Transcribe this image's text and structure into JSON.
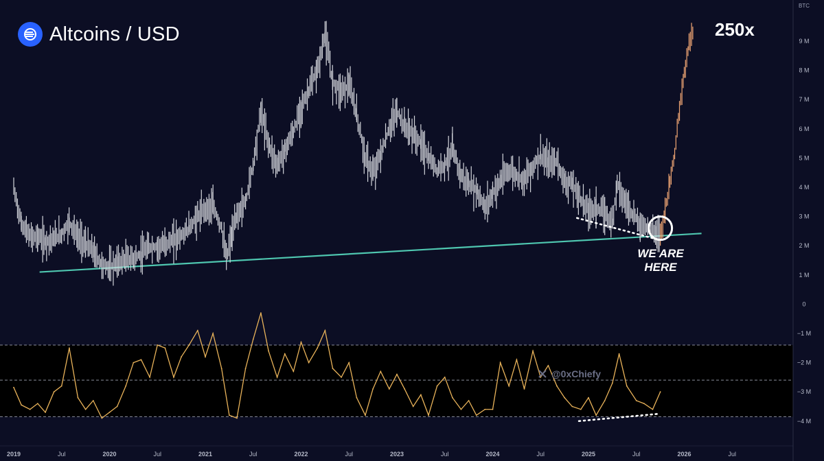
{
  "header": {
    "title": "Altcoins / USD",
    "multiplier": "250x",
    "annotation_line1": "WE ARE",
    "annotation_line2": "HERE",
    "watermark": "@0xChiefy",
    "axis_unit_badge": "BTC"
  },
  "colors": {
    "background": "#0c0e24",
    "price_candles": "#d4d6dc",
    "projection_candles": "#f0a674",
    "trendline": "#4fc7b0",
    "oscillator": "#e9b35a",
    "oscillator_band": "#000000",
    "logo": "#2962ff"
  },
  "icons": {
    "logo": "exchange-logo-icon",
    "watermark": "x-logo-icon"
  },
  "chart_data": {
    "type": "line",
    "title": "Altcoins / USD",
    "x_tick_labels": [
      "2019",
      "Jul",
      "2020",
      "Jul",
      "2021",
      "Jul",
      "2022",
      "Jul",
      "2023",
      "Jul",
      "2024",
      "Jul",
      "2025",
      "Jul",
      "2026",
      "Jul"
    ],
    "y_tick_labels": [
      "9 M",
      "8 M",
      "7 M",
      "6 M",
      "5 M",
      "4 M",
      "3 M",
      "2 M",
      "1 M",
      "0",
      "−1 M",
      "−2 M",
      "−3 M",
      "−4 M"
    ],
    "y_unit": "BTC",
    "xlim": [
      2019.0,
      2026.6
    ],
    "ylim": [
      -4.4,
      10.0
    ],
    "series": [
      {
        "name": "",
        "values": [
          {
            "x": 2019.0,
            "y": 3.95
          },
          {
            "x": 2019.08,
            "y": 2.75
          },
          {
            "x": 2019.17,
            "y": 2.3
          },
          {
            "x": 2019.25,
            "y": 2.3
          },
          {
            "x": 2019.33,
            "y": 2.15
          },
          {
            "x": 2019.42,
            "y": 2.25
          },
          {
            "x": 2019.5,
            "y": 2.4
          },
          {
            "x": 2019.58,
            "y": 2.8
          },
          {
            "x": 2019.67,
            "y": 2.3
          },
          {
            "x": 2019.75,
            "y": 2.05
          },
          {
            "x": 2019.83,
            "y": 1.8
          },
          {
            "x": 2019.92,
            "y": 1.35
          },
          {
            "x": 2020.0,
            "y": 1.25
          },
          {
            "x": 2020.08,
            "y": 1.4
          },
          {
            "x": 2020.17,
            "y": 1.55
          },
          {
            "x": 2020.25,
            "y": 1.55
          },
          {
            "x": 2020.33,
            "y": 1.7
          },
          {
            "x": 2020.42,
            "y": 1.95
          },
          {
            "x": 2020.5,
            "y": 1.95
          },
          {
            "x": 2020.58,
            "y": 2.05
          },
          {
            "x": 2020.67,
            "y": 2.2
          },
          {
            "x": 2020.75,
            "y": 2.35
          },
          {
            "x": 2020.83,
            "y": 2.6
          },
          {
            "x": 2020.92,
            "y": 3.0
          },
          {
            "x": 2021.0,
            "y": 3.25
          },
          {
            "x": 2021.08,
            "y": 3.35
          },
          {
            "x": 2021.17,
            "y": 2.6
          },
          {
            "x": 2021.22,
            "y": 1.55
          },
          {
            "x": 2021.28,
            "y": 2.4
          },
          {
            "x": 2021.33,
            "y": 3.05
          },
          {
            "x": 2021.42,
            "y": 3.5
          },
          {
            "x": 2021.5,
            "y": 4.8
          },
          {
            "x": 2021.58,
            "y": 6.6
          },
          {
            "x": 2021.67,
            "y": 5.4
          },
          {
            "x": 2021.75,
            "y": 4.75
          },
          {
            "x": 2021.83,
            "y": 5.3
          },
          {
            "x": 2021.92,
            "y": 5.9
          },
          {
            "x": 2022.0,
            "y": 6.7
          },
          {
            "x": 2022.08,
            "y": 7.3
          },
          {
            "x": 2022.17,
            "y": 8.0
          },
          {
            "x": 2022.25,
            "y": 9.2
          },
          {
            "x": 2022.33,
            "y": 7.6
          },
          {
            "x": 2022.42,
            "y": 7.3
          },
          {
            "x": 2022.5,
            "y": 7.5
          },
          {
            "x": 2022.58,
            "y": 6.5
          },
          {
            "x": 2022.67,
            "y": 5.0
          },
          {
            "x": 2022.75,
            "y": 4.5
          },
          {
            "x": 2022.83,
            "y": 5.1
          },
          {
            "x": 2022.92,
            "y": 6.0
          },
          {
            "x": 2023.0,
            "y": 6.6
          },
          {
            "x": 2023.08,
            "y": 6.1
          },
          {
            "x": 2023.17,
            "y": 5.8
          },
          {
            "x": 2023.25,
            "y": 5.5
          },
          {
            "x": 2023.33,
            "y": 5.0
          },
          {
            "x": 2023.42,
            "y": 4.6
          },
          {
            "x": 2023.5,
            "y": 4.8
          },
          {
            "x": 2023.58,
            "y": 5.3
          },
          {
            "x": 2023.67,
            "y": 4.4
          },
          {
            "x": 2023.75,
            "y": 4.1
          },
          {
            "x": 2023.83,
            "y": 3.9
          },
          {
            "x": 2023.92,
            "y": 3.3
          },
          {
            "x": 2024.0,
            "y": 3.8
          },
          {
            "x": 2024.08,
            "y": 4.2
          },
          {
            "x": 2024.17,
            "y": 4.6
          },
          {
            "x": 2024.25,
            "y": 4.4
          },
          {
            "x": 2024.33,
            "y": 4.3
          },
          {
            "x": 2024.42,
            "y": 4.7
          },
          {
            "x": 2024.5,
            "y": 5.1
          },
          {
            "x": 2024.58,
            "y": 4.8
          },
          {
            "x": 2024.67,
            "y": 4.9
          },
          {
            "x": 2024.75,
            "y": 4.2
          },
          {
            "x": 2024.83,
            "y": 4.1
          },
          {
            "x": 2024.92,
            "y": 3.6
          },
          {
            "x": 2025.0,
            "y": 3.2
          },
          {
            "x": 2025.08,
            "y": 3.3
          },
          {
            "x": 2025.17,
            "y": 3.1
          },
          {
            "x": 2025.25,
            "y": 2.8
          },
          {
            "x": 2025.3,
            "y": 4.2
          },
          {
            "x": 2025.38,
            "y": 3.5
          },
          {
            "x": 2025.46,
            "y": 3.1
          },
          {
            "x": 2025.54,
            "y": 2.7
          },
          {
            "x": 2025.62,
            "y": 2.65
          },
          {
            "x": 2025.7,
            "y": 2.45
          },
          {
            "x": 2025.75,
            "y": 2.4
          }
        ]
      },
      {
        "name": "",
        "values": [
          {
            "x": 2025.75,
            "y": 2.4
          },
          {
            "x": 2025.8,
            "y": 3.2
          },
          {
            "x": 2025.85,
            "y": 4.2
          },
          {
            "x": 2025.9,
            "y": 5.2
          },
          {
            "x": 2025.95,
            "y": 6.6
          },
          {
            "x": 2026.0,
            "y": 7.9
          },
          {
            "x": 2026.05,
            "y": 8.9
          },
          {
            "x": 2026.09,
            "y": 9.4
          }
        ]
      },
      {
        "name": "",
        "values": [
          {
            "x": 2019.0,
            "y": -2.85
          },
          {
            "x": 2019.08,
            "y": -3.45
          },
          {
            "x": 2019.17,
            "y": -3.6
          },
          {
            "x": 2019.25,
            "y": -3.4
          },
          {
            "x": 2019.33,
            "y": -3.7
          },
          {
            "x": 2019.42,
            "y": -3.0
          },
          {
            "x": 2019.5,
            "y": -2.8
          },
          {
            "x": 2019.58,
            "y": -1.5
          },
          {
            "x": 2019.67,
            "y": -3.2
          },
          {
            "x": 2019.75,
            "y": -3.6
          },
          {
            "x": 2019.83,
            "y": -3.3
          },
          {
            "x": 2019.92,
            "y": -3.9
          },
          {
            "x": 2020.0,
            "y": -3.7
          },
          {
            "x": 2020.08,
            "y": -3.5
          },
          {
            "x": 2020.17,
            "y": -2.8
          },
          {
            "x": 2020.25,
            "y": -2.0
          },
          {
            "x": 2020.33,
            "y": -1.9
          },
          {
            "x": 2020.42,
            "y": -2.5
          },
          {
            "x": 2020.5,
            "y": -1.4
          },
          {
            "x": 2020.58,
            "y": -1.5
          },
          {
            "x": 2020.67,
            "y": -2.5
          },
          {
            "x": 2020.75,
            "y": -1.8
          },
          {
            "x": 2020.83,
            "y": -1.4
          },
          {
            "x": 2020.92,
            "y": -0.9
          },
          {
            "x": 2021.0,
            "y": -1.8
          },
          {
            "x": 2021.08,
            "y": -1.0
          },
          {
            "x": 2021.17,
            "y": -2.2
          },
          {
            "x": 2021.25,
            "y": -3.8
          },
          {
            "x": 2021.33,
            "y": -3.9
          },
          {
            "x": 2021.42,
            "y": -2.2
          },
          {
            "x": 2021.5,
            "y": -1.2
          },
          {
            "x": 2021.58,
            "y": -0.3
          },
          {
            "x": 2021.66,
            "y": -1.6
          },
          {
            "x": 2021.75,
            "y": -2.5
          },
          {
            "x": 2021.83,
            "y": -1.7
          },
          {
            "x": 2021.92,
            "y": -2.3
          },
          {
            "x": 2022.0,
            "y": -1.3
          },
          {
            "x": 2022.08,
            "y": -2.0
          },
          {
            "x": 2022.17,
            "y": -1.5
          },
          {
            "x": 2022.25,
            "y": -0.9
          },
          {
            "x": 2022.33,
            "y": -2.2
          },
          {
            "x": 2022.42,
            "y": -2.5
          },
          {
            "x": 2022.5,
            "y": -2.0
          },
          {
            "x": 2022.58,
            "y": -3.2
          },
          {
            "x": 2022.67,
            "y": -3.8
          },
          {
            "x": 2022.75,
            "y": -2.9
          },
          {
            "x": 2022.83,
            "y": -2.3
          },
          {
            "x": 2022.92,
            "y": -2.9
          },
          {
            "x": 2023.0,
            "y": -2.4
          },
          {
            "x": 2023.08,
            "y": -2.9
          },
          {
            "x": 2023.17,
            "y": -3.5
          },
          {
            "x": 2023.25,
            "y": -3.1
          },
          {
            "x": 2023.33,
            "y": -3.8
          },
          {
            "x": 2023.42,
            "y": -2.8
          },
          {
            "x": 2023.5,
            "y": -2.5
          },
          {
            "x": 2023.58,
            "y": -3.2
          },
          {
            "x": 2023.67,
            "y": -3.6
          },
          {
            "x": 2023.75,
            "y": -3.3
          },
          {
            "x": 2023.83,
            "y": -3.8
          },
          {
            "x": 2023.92,
            "y": -3.6
          },
          {
            "x": 2024.0,
            "y": -3.6
          },
          {
            "x": 2024.08,
            "y": -2.0
          },
          {
            "x": 2024.17,
            "y": -2.8
          },
          {
            "x": 2024.25,
            "y": -1.9
          },
          {
            "x": 2024.33,
            "y": -2.9
          },
          {
            "x": 2024.42,
            "y": -1.6
          },
          {
            "x": 2024.5,
            "y": -2.5
          },
          {
            "x": 2024.58,
            "y": -2.1
          },
          {
            "x": 2024.67,
            "y": -2.8
          },
          {
            "x": 2024.75,
            "y": -3.2
          },
          {
            "x": 2024.83,
            "y": -3.5
          },
          {
            "x": 2024.92,
            "y": -3.6
          },
          {
            "x": 2025.0,
            "y": -3.2
          },
          {
            "x": 2025.08,
            "y": -3.8
          },
          {
            "x": 2025.17,
            "y": -3.3
          },
          {
            "x": 2025.25,
            "y": -2.7
          },
          {
            "x": 2025.32,
            "y": -1.7
          },
          {
            "x": 2025.4,
            "y": -2.8
          },
          {
            "x": 2025.5,
            "y": -3.3
          },
          {
            "x": 2025.58,
            "y": -3.4
          },
          {
            "x": 2025.67,
            "y": -3.6
          },
          {
            "x": 2025.75,
            "y": -3.0
          }
        ]
      }
    ],
    "annotations": [
      {
        "type": "trendline",
        "from": {
          "x": 2019.27,
          "y": 1.1
        },
        "to": {
          "x": 2026.18,
          "y": 2.42
        }
      },
      {
        "type": "dotted-line",
        "from": {
          "x": 2024.88,
          "y": 2.95
        },
        "to": {
          "x": 2025.68,
          "y": 2.25
        }
      },
      {
        "type": "dotted-line",
        "from": {
          "x": 2024.9,
          "y": -4.0
        },
        "to": {
          "x": 2025.74,
          "y": -3.75
        }
      },
      {
        "type": "circle",
        "at": {
          "x": 2025.75,
          "y": 2.6
        }
      },
      {
        "type": "dashed-level",
        "y": -1.4
      },
      {
        "type": "dashed-level",
        "y": -2.6
      },
      {
        "type": "dashed-level",
        "y": -3.85
      }
    ],
    "grid": false,
    "legend": "none"
  }
}
